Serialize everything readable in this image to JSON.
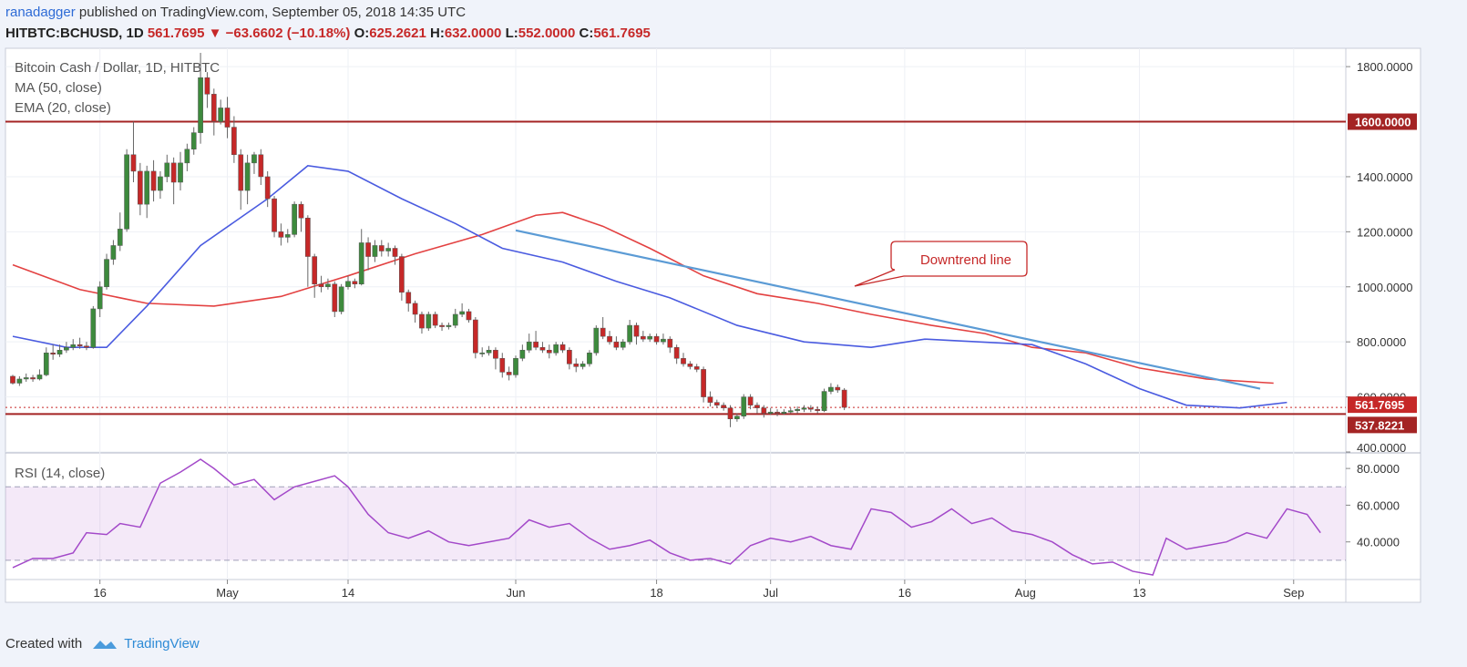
{
  "header": {
    "user": "ranadagger",
    "published": " published on TradingView.com, September 05, 2018 14:35 UTC",
    "symbol": "HITBTC:BCHUSD, 1D",
    "last": "561.7695",
    "change": "−63.6602 (−10.18%)",
    "o_label": "O:",
    "o": "625.2621",
    "h_label": "H:",
    "h": "632.0000",
    "l_label": "L:",
    "l": "552.0000",
    "c_label": "C:",
    "c": "561.7695"
  },
  "legend": {
    "title": "Bitcoin Cash / Dollar, 1D, HITBTC",
    "ma": "MA (50, close)",
    "ema": "EMA (20, close)",
    "rsi": "RSI (14, close)"
  },
  "annotation": "Downtrend line",
  "footer": {
    "created": "Created with",
    "brand": "TradingView"
  },
  "colors": {
    "up": "#3d8a3d",
    "down": "#c62828",
    "ma": "#e34141",
    "ema": "#4a5be0",
    "trend": "#5b9bd5",
    "level": "#a42424",
    "rsi": "#a349c9",
    "logo": "#2e8bd6"
  },
  "chart_data": {
    "type": "candlestick",
    "x_tick_labels": [
      "16",
      "May",
      "14",
      "Jun",
      "18",
      "Jul",
      "16",
      "Aug",
      "13",
      "Sep"
    ],
    "x_tick_bars": [
      13,
      32,
      50,
      75,
      96,
      113,
      133,
      151,
      168,
      191
    ],
    "price_axis": {
      "range": [
        400,
        1860
      ],
      "ticks": [
        400,
        600,
        800,
        1000,
        1200,
        1400,
        1600,
        1800
      ],
      "tick_labels": [
        "400.0000",
        "600.0000",
        "800.0000",
        "1000.0000",
        "1200.0000",
        "1400.0000",
        "1600.0000",
        "1800.0000"
      ]
    },
    "levels": [
      {
        "value": 1600,
        "label": "1600.0000"
      },
      {
        "value": 537.8221,
        "label": "537.8221"
      }
    ],
    "last_price": {
      "value": 561.7695,
      "label": "561.7695"
    },
    "candles": [
      [
        675,
        650,
        680,
        645
      ],
      [
        650,
        665,
        675,
        640
      ],
      [
        665,
        670,
        685,
        655
      ],
      [
        670,
        665,
        680,
        655
      ],
      [
        665,
        680,
        700,
        660
      ],
      [
        680,
        760,
        780,
        675
      ],
      [
        760,
        755,
        790,
        735
      ],
      [
        755,
        770,
        790,
        745
      ],
      [
        770,
        780,
        800,
        760
      ],
      [
        780,
        790,
        810,
        770
      ],
      [
        790,
        785,
        815,
        775
      ],
      [
        785,
        780,
        800,
        770
      ],
      [
        780,
        920,
        930,
        775
      ],
      [
        920,
        1000,
        1020,
        890
      ],
      [
        1000,
        1100,
        1120,
        990
      ],
      [
        1100,
        1150,
        1170,
        1080
      ],
      [
        1150,
        1210,
        1270,
        1130
      ],
      [
        1210,
        1480,
        1500,
        1200
      ],
      [
        1480,
        1420,
        1600,
        1380
      ],
      [
        1420,
        1300,
        1450,
        1260
      ],
      [
        1300,
        1420,
        1440,
        1250
      ],
      [
        1420,
        1350,
        1460,
        1310
      ],
      [
        1350,
        1400,
        1420,
        1320
      ],
      [
        1400,
        1450,
        1480,
        1380
      ],
      [
        1450,
        1380,
        1470,
        1300
      ],
      [
        1380,
        1450,
        1490,
        1350
      ],
      [
        1450,
        1500,
        1520,
        1420
      ],
      [
        1500,
        1560,
        1580,
        1480
      ],
      [
        1560,
        1760,
        1850,
        1520
      ],
      [
        1760,
        1700,
        1780,
        1650
      ],
      [
        1700,
        1600,
        1720,
        1550
      ],
      [
        1600,
        1650,
        1680,
        1590
      ],
      [
        1650,
        1580,
        1690,
        1540
      ],
      [
        1580,
        1480,
        1620,
        1450
      ],
      [
        1480,
        1350,
        1500,
        1280
      ],
      [
        1350,
        1450,
        1480,
        1300
      ],
      [
        1450,
        1480,
        1490,
        1410
      ],
      [
        1480,
        1400,
        1500,
        1370
      ],
      [
        1400,
        1320,
        1420,
        1290
      ],
      [
        1320,
        1200,
        1330,
        1180
      ],
      [
        1200,
        1180,
        1230,
        1150
      ],
      [
        1180,
        1190,
        1210,
        1160
      ],
      [
        1190,
        1300,
        1310,
        1180
      ],
      [
        1300,
        1250,
        1310,
        1200
      ],
      [
        1250,
        1110,
        1260,
        1000
      ],
      [
        1110,
        1010,
        1120,
        960
      ],
      [
        1010,
        1000,
        1040,
        980
      ],
      [
        1000,
        1010,
        1030,
        990
      ],
      [
        1010,
        910,
        1020,
        890
      ],
      [
        910,
        1000,
        1010,
        900
      ],
      [
        1000,
        1020,
        1040,
        990
      ],
      [
        1020,
        1010,
        1030,
        995
      ],
      [
        1010,
        1160,
        1210,
        1005
      ],
      [
        1160,
        1110,
        1180,
        1060
      ],
      [
        1110,
        1150,
        1170,
        1090
      ],
      [
        1150,
        1130,
        1170,
        1110
      ],
      [
        1130,
        1140,
        1160,
        1110
      ],
      [
        1140,
        1110,
        1150,
        1080
      ],
      [
        1110,
        980,
        1120,
        950
      ],
      [
        980,
        940,
        990,
        910
      ],
      [
        940,
        900,
        950,
        870
      ],
      [
        900,
        850,
        910,
        830
      ],
      [
        850,
        900,
        910,
        840
      ],
      [
        900,
        860,
        910,
        850
      ],
      [
        860,
        855,
        870,
        840
      ],
      [
        855,
        860,
        870,
        845
      ],
      [
        860,
        900,
        920,
        850
      ],
      [
        900,
        910,
        940,
        890
      ],
      [
        910,
        880,
        920,
        870
      ],
      [
        880,
        760,
        890,
        740
      ],
      [
        760,
        760,
        780,
        745
      ],
      [
        760,
        770,
        785,
        750
      ],
      [
        770,
        740,
        780,
        700
      ],
      [
        740,
        690,
        760,
        670
      ],
      [
        690,
        680,
        710,
        660
      ],
      [
        680,
        740,
        750,
        670
      ],
      [
        740,
        770,
        790,
        730
      ],
      [
        770,
        800,
        830,
        760
      ],
      [
        800,
        780,
        840,
        770
      ],
      [
        780,
        770,
        800,
        760
      ],
      [
        770,
        760,
        790,
        740
      ],
      [
        760,
        790,
        800,
        750
      ],
      [
        790,
        770,
        800,
        760
      ],
      [
        770,
        720,
        780,
        700
      ],
      [
        720,
        710,
        740,
        690
      ],
      [
        710,
        720,
        730,
        700
      ],
      [
        720,
        760,
        770,
        710
      ],
      [
        760,
        850,
        860,
        750
      ],
      [
        850,
        820,
        890,
        810
      ],
      [
        820,
        800,
        840,
        790
      ],
      [
        800,
        780,
        820,
        770
      ],
      [
        780,
        800,
        810,
        770
      ],
      [
        800,
        860,
        880,
        790
      ],
      [
        860,
        820,
        870,
        790
      ],
      [
        820,
        810,
        840,
        800
      ],
      [
        810,
        820,
        830,
        800
      ],
      [
        820,
        800,
        830,
        790
      ],
      [
        800,
        810,
        830,
        790
      ],
      [
        810,
        780,
        820,
        760
      ],
      [
        780,
        740,
        790,
        720
      ],
      [
        740,
        720,
        760,
        710
      ],
      [
        720,
        710,
        730,
        700
      ],
      [
        710,
        700,
        720,
        690
      ],
      [
        700,
        600,
        710,
        580
      ],
      [
        600,
        580,
        620,
        565
      ],
      [
        580,
        570,
        590,
        560
      ],
      [
        570,
        560,
        580,
        550
      ],
      [
        560,
        520,
        570,
        490
      ],
      [
        520,
        530,
        540,
        510
      ],
      [
        530,
        600,
        610,
        520
      ],
      [
        600,
        570,
        610,
        555
      ],
      [
        570,
        560,
        580,
        540
      ],
      [
        560,
        540,
        570,
        525
      ],
      [
        540,
        545,
        560,
        535
      ],
      [
        545,
        540,
        555,
        530
      ],
      [
        540,
        545,
        555,
        535
      ],
      [
        545,
        550,
        560,
        540
      ],
      [
        550,
        555,
        565,
        540
      ],
      [
        555,
        560,
        570,
        545
      ],
      [
        560,
        555,
        570,
        545
      ],
      [
        555,
        550,
        565,
        540
      ],
      [
        550,
        620,
        630,
        545
      ],
      [
        620,
        635,
        650,
        610
      ],
      [
        635,
        625,
        645,
        615
      ],
      [
        625,
        562,
        632,
        552
      ]
    ],
    "ma50": [
      [
        0,
        1080
      ],
      [
        10,
        990
      ],
      [
        20,
        940
      ],
      [
        30,
        930
      ],
      [
        40,
        965
      ],
      [
        50,
        1040
      ],
      [
        60,
        1120
      ],
      [
        70,
        1190
      ],
      [
        78,
        1260
      ],
      [
        82,
        1270
      ],
      [
        88,
        1220
      ],
      [
        95,
        1140
      ],
      [
        103,
        1040
      ],
      [
        111,
        975
      ],
      [
        120,
        940
      ],
      [
        128,
        900
      ],
      [
        137,
        860
      ],
      [
        145,
        830
      ],
      [
        152,
        780
      ],
      [
        160,
        760
      ],
      [
        168,
        705
      ],
      [
        178,
        665
      ],
      [
        188,
        650
      ]
    ],
    "ema20": [
      [
        0,
        820
      ],
      [
        8,
        780
      ],
      [
        14,
        780
      ],
      [
        20,
        930
      ],
      [
        28,
        1150
      ],
      [
        38,
        1320
      ],
      [
        44,
        1440
      ],
      [
        50,
        1420
      ],
      [
        58,
        1320
      ],
      [
        66,
        1230
      ],
      [
        73,
        1140
      ],
      [
        82,
        1090
      ],
      [
        90,
        1020
      ],
      [
        98,
        960
      ],
      [
        108,
        860
      ],
      [
        118,
        800
      ],
      [
        128,
        780
      ],
      [
        136,
        810
      ],
      [
        144,
        800
      ],
      [
        152,
        790
      ],
      [
        160,
        720
      ],
      [
        168,
        630
      ],
      [
        175,
        570
      ],
      [
        183,
        560
      ],
      [
        190,
        580
      ]
    ],
    "trendline": [
      [
        75,
        1205
      ],
      [
        186,
        630
      ]
    ],
    "rsi": {
      "range": [
        20,
        88
      ],
      "ticks": [
        40,
        60,
        80
      ],
      "tick_labels": [
        "40.0000",
        "60.0000",
        "80.0000"
      ],
      "band": [
        30,
        70
      ],
      "values": [
        [
          0,
          26
        ],
        [
          3,
          31
        ],
        [
          6,
          31
        ],
        [
          9,
          34
        ],
        [
          11,
          45
        ],
        [
          14,
          44
        ],
        [
          16,
          50
        ],
        [
          19,
          48
        ],
        [
          22,
          72
        ],
        [
          25,
          78
        ],
        [
          28,
          85
        ],
        [
          30,
          80
        ],
        [
          33,
          71
        ],
        [
          36,
          74
        ],
        [
          39,
          63
        ],
        [
          42,
          70
        ],
        [
          45,
          73
        ],
        [
          48,
          76
        ],
        [
          50,
          70
        ],
        [
          53,
          55
        ],
        [
          56,
          45
        ],
        [
          59,
          42
        ],
        [
          62,
          46
        ],
        [
          65,
          40
        ],
        [
          68,
          38
        ],
        [
          71,
          40
        ],
        [
          74,
          42
        ],
        [
          77,
          52
        ],
        [
          80,
          48
        ],
        [
          83,
          50
        ],
        [
          86,
          42
        ],
        [
          89,
          36
        ],
        [
          92,
          38
        ],
        [
          95,
          41
        ],
        [
          98,
          34
        ],
        [
          101,
          30
        ],
        [
          104,
          31
        ],
        [
          107,
          28
        ],
        [
          110,
          38
        ],
        [
          113,
          42
        ],
        [
          116,
          40
        ],
        [
          119,
          43
        ],
        [
          122,
          38
        ],
        [
          125,
          36
        ],
        [
          128,
          58
        ],
        [
          131,
          56
        ],
        [
          134,
          48
        ],
        [
          137,
          51
        ],
        [
          140,
          58
        ],
        [
          143,
          50
        ],
        [
          146,
          53
        ],
        [
          149,
          46
        ],
        [
          152,
          44
        ],
        [
          155,
          40
        ],
        [
          158,
          33
        ],
        [
          161,
          28
        ],
        [
          164,
          29
        ],
        [
          167,
          24
        ],
        [
          170,
          22
        ],
        [
          172,
          42
        ],
        [
          175,
          36
        ],
        [
          178,
          38
        ],
        [
          181,
          40
        ],
        [
          184,
          45
        ],
        [
          187,
          42
        ],
        [
          190,
          58
        ],
        [
          193,
          55
        ],
        [
          195,
          45
        ]
      ]
    }
  }
}
